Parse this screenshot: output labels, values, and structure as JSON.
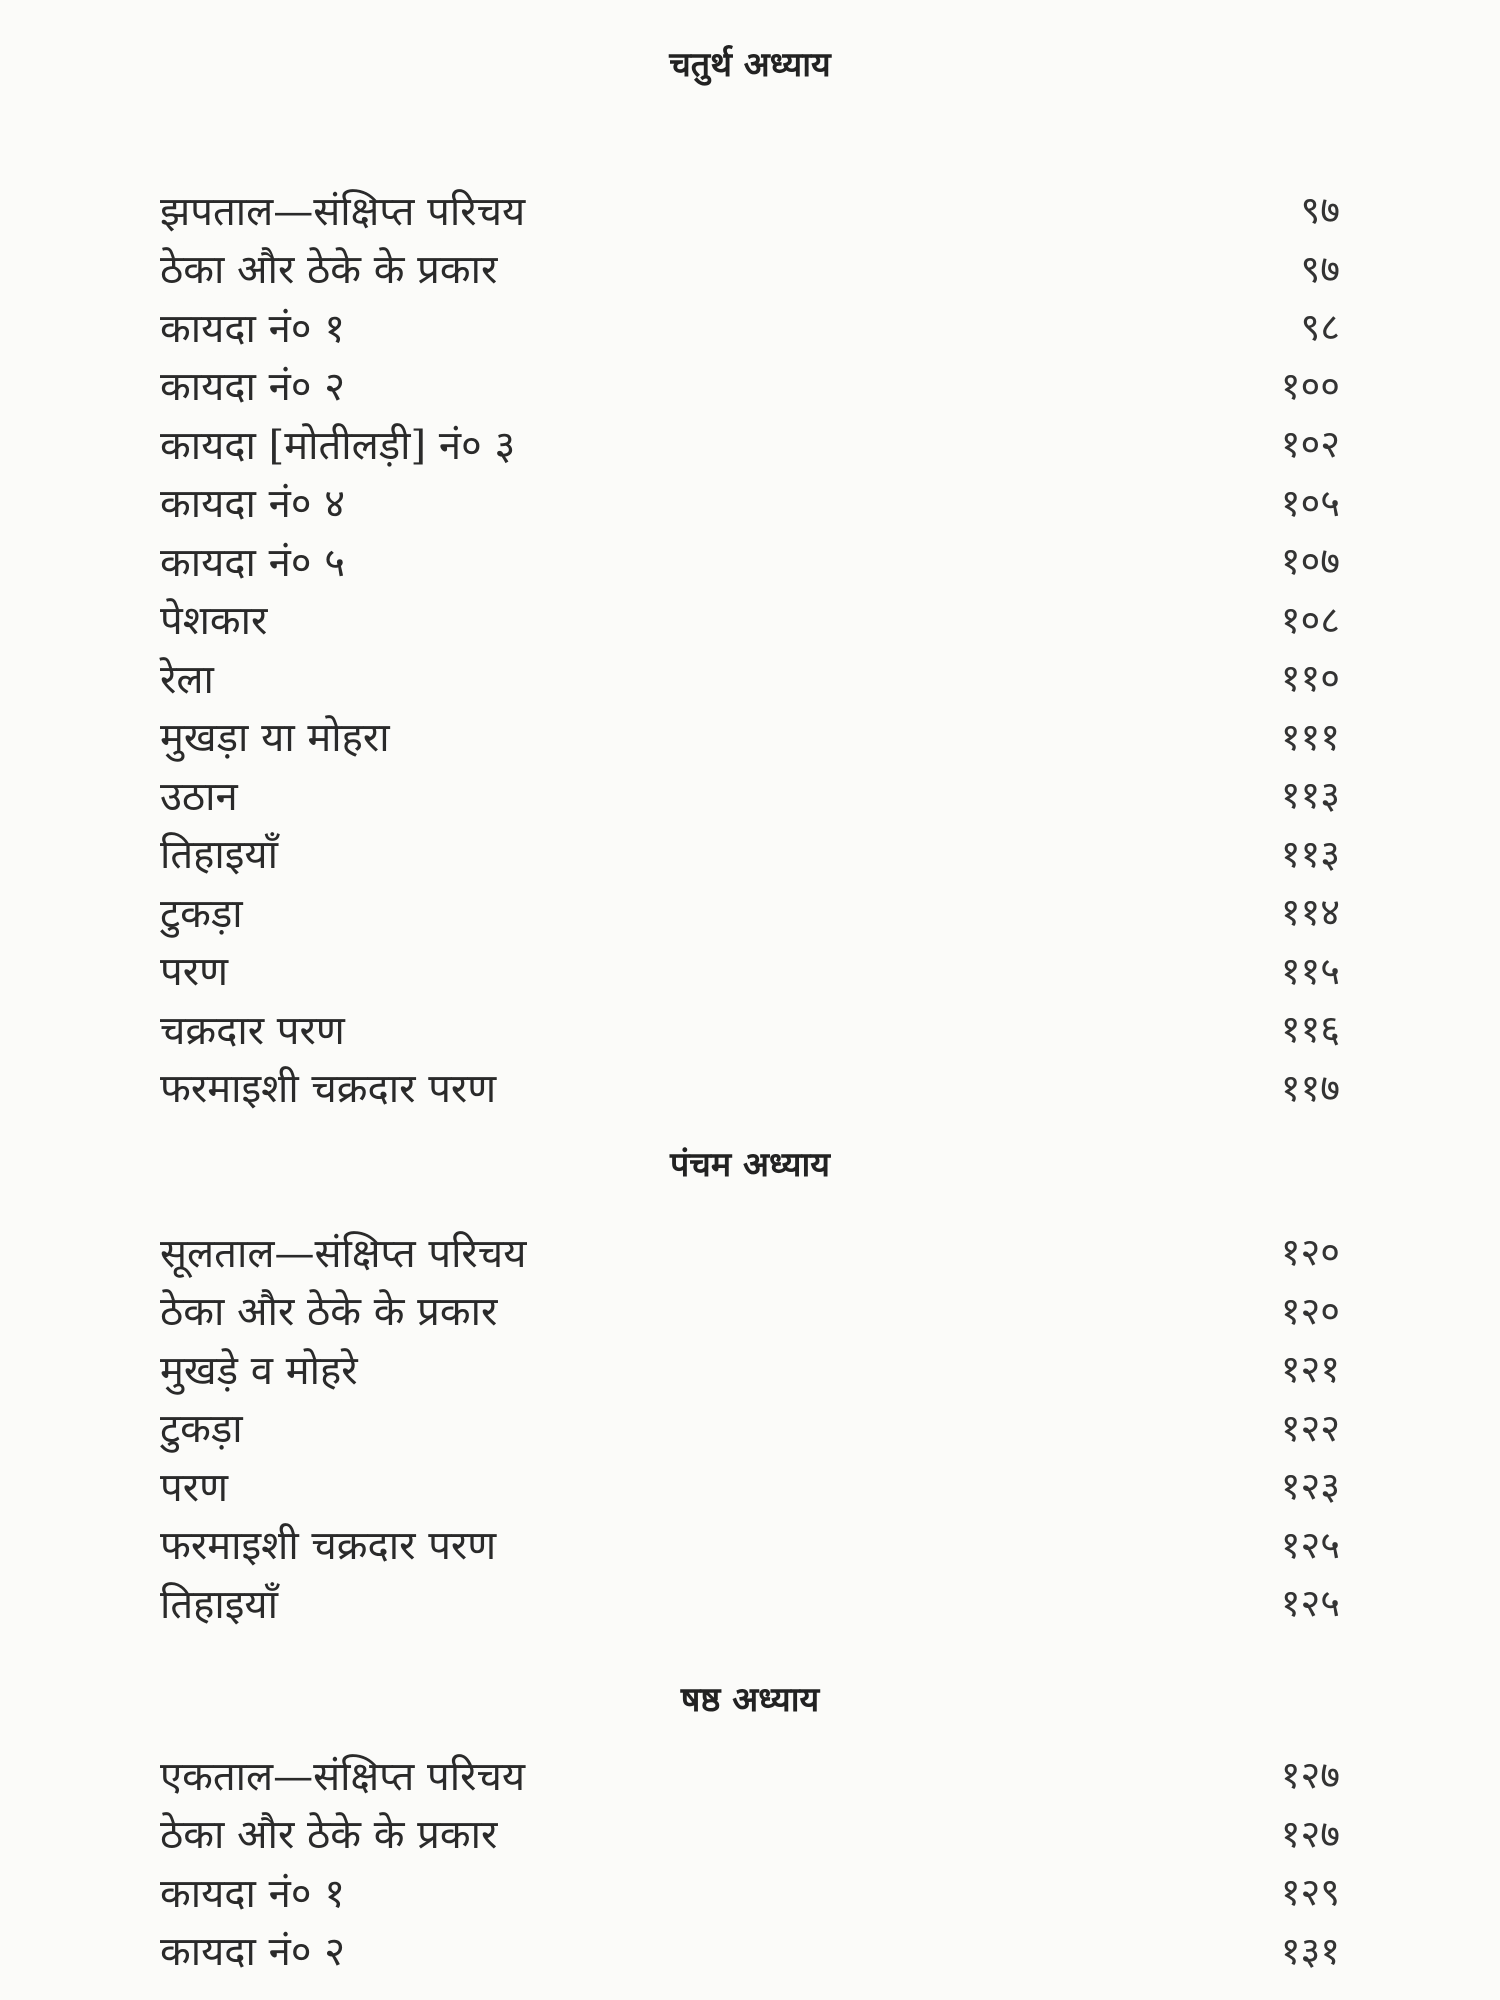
{
  "sections": [
    {
      "heading": "चतुर्थ अध्याय",
      "entries": [
        {
          "title": "झपताल—संक्षिप्त परिचय",
          "page": "९७"
        },
        {
          "title": "ठेका और ठेके के प्रकार",
          "page": "९७"
        },
        {
          "title": "कायदा नं० १",
          "page": "९८"
        },
        {
          "title": "कायदा नं० २",
          "page": "१००"
        },
        {
          "title": "कायदा [मोतीलड़ी] नं० ३",
          "page": "१०२"
        },
        {
          "title": "कायदा नं० ४",
          "page": "१०५"
        },
        {
          "title": "कायदा नं० ५",
          "page": "१०७"
        },
        {
          "title": "पेशकार",
          "page": "१०८"
        },
        {
          "title": "रेला",
          "page": "११०"
        },
        {
          "title": "मुखड़ा या मोहरा",
          "page": "१११"
        },
        {
          "title": "उठान",
          "page": "११३"
        },
        {
          "title": "तिहाइयाँ",
          "page": "११३"
        },
        {
          "title": "टुकड़ा",
          "page": "११४"
        },
        {
          "title": "परण",
          "page": "११५"
        },
        {
          "title": "चक्रदार परण",
          "page": "११६"
        },
        {
          "title": "फरमाइशी चक्रदार परण",
          "page": "११७"
        }
      ]
    },
    {
      "heading": "पंचम अध्याय",
      "entries": [
        {
          "title": "सूलताल—संक्षिप्त परिचय",
          "page": "१२०"
        },
        {
          "title": "ठेका और ठेके के प्रकार",
          "page": "१२०"
        },
        {
          "title": "मुखड़े व मोहरे",
          "page": "१२१"
        },
        {
          "title": "टुकड़ा",
          "page": "१२२"
        },
        {
          "title": "परण",
          "page": "१२३"
        },
        {
          "title": "फरमाइशी चक्रदार परण",
          "page": "१२५"
        },
        {
          "title": "तिहाइयाँ",
          "page": "१२५"
        }
      ]
    },
    {
      "heading": "षष्ठ अध्याय",
      "entries": [
        {
          "title": "एकताल—संक्षिप्त परिचय",
          "page": "१२७"
        },
        {
          "title": "ठेका और ठेके के प्रकार",
          "page": "१२७"
        },
        {
          "title": "कायदा नं० १",
          "page": "१२९"
        },
        {
          "title": "कायदा नं० २",
          "page": "१३१"
        }
      ]
    }
  ]
}
